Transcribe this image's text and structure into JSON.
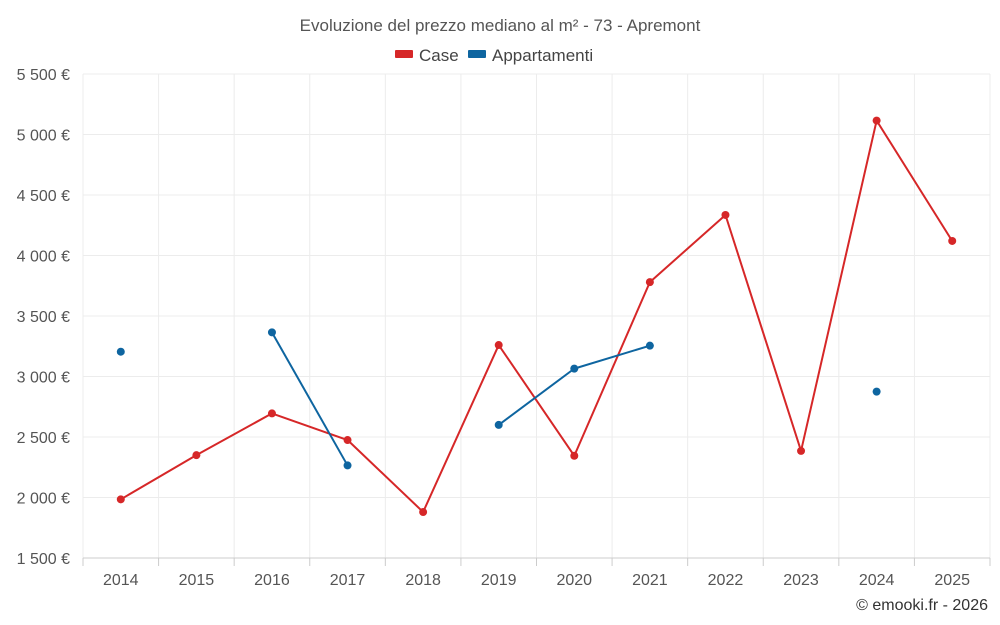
{
  "chart_data": {
    "type": "line",
    "title": "Evoluzione del prezzo mediano al m² - 73 - Apremont",
    "categories": [
      "2014",
      "2015",
      "2016",
      "2017",
      "2018",
      "2019",
      "2020",
      "2021",
      "2022",
      "2023",
      "2024",
      "2025"
    ],
    "ylim": [
      1500,
      5500
    ],
    "yticks": [
      1500,
      2000,
      2500,
      3000,
      3500,
      4000,
      4500,
      5000,
      5500
    ],
    "ytick_labels": [
      "1 500 €",
      "2 000 €",
      "2 500 €",
      "3 000 €",
      "3 500 €",
      "4 000 €",
      "4 500 €",
      "5 000 €",
      "5 500 €"
    ],
    "legend_position": "top-center",
    "grid": true,
    "series": [
      {
        "name": "Case",
        "color": "#d62728",
        "values": [
          1985,
          2350,
          2695,
          2475,
          1880,
          3260,
          2345,
          3780,
          4335,
          2385,
          5115,
          4120
        ]
      },
      {
        "name": "Appartamenti",
        "color": "#0e65a0",
        "values": [
          3205,
          null,
          3365,
          2265,
          null,
          2600,
          3065,
          3255,
          null,
          null,
          2875,
          null
        ]
      }
    ]
  },
  "credit": "© emooki.fr - 2026"
}
